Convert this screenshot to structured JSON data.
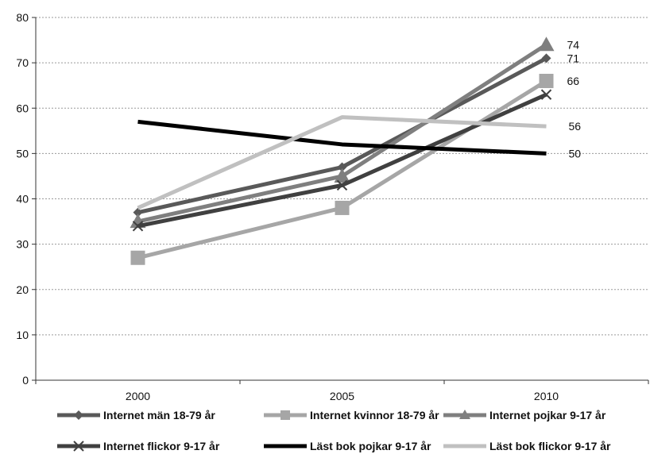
{
  "chart_data": {
    "type": "line",
    "title": "",
    "xlabel": "",
    "ylabel": "",
    "x": [
      "2000",
      "2005",
      "2010"
    ],
    "ylim": [
      0,
      80
    ],
    "yticks": [
      0,
      10,
      20,
      30,
      40,
      50,
      60,
      70,
      80
    ],
    "grid": "horizontal dashed",
    "legend_position": "bottom",
    "series": [
      {
        "name": "Internet män 18-79 år",
        "values": [
          37,
          47,
          71
        ],
        "color": "#595959",
        "marker": "diamond",
        "end_label": "71"
      },
      {
        "name": "Internet kvinnor 18-79 år",
        "values": [
          27,
          38,
          66
        ],
        "color": "#a6a6a6",
        "marker": "square",
        "end_label": "66"
      },
      {
        "name": "Internet pojkar 9-17 år",
        "values": [
          35,
          45,
          74
        ],
        "color": "#7f7f7f",
        "marker": "triangle",
        "end_label": "74"
      },
      {
        "name": "Internet flickor 9-17 år",
        "values": [
          34,
          43,
          63
        ],
        "color": "#404040",
        "marker": "x",
        "end_label": ""
      },
      {
        "name": "Läst bok pojkar 9-17 år",
        "values": [
          57,
          52,
          50
        ],
        "color": "#000000",
        "marker": "none",
        "end_label": "50"
      },
      {
        "name": "Läst bok flickor 9-17 år",
        "values": [
          38,
          58,
          56
        ],
        "color": "#c0c0c0",
        "marker": "none",
        "end_label": "56"
      }
    ]
  }
}
